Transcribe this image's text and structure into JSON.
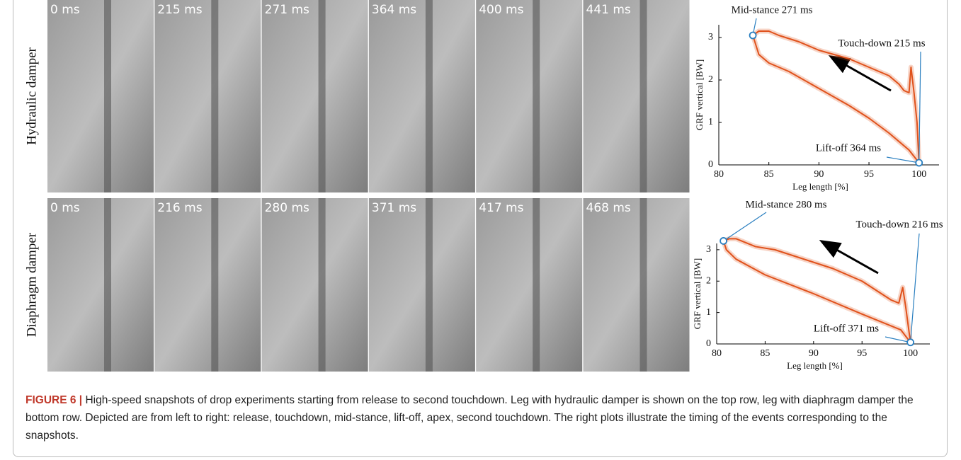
{
  "figure": {
    "rows": [
      {
        "label": "Hydraulic damper",
        "times": [
          "0 ms",
          "215 ms",
          "271 ms",
          "364 ms",
          "400 ms",
          "441 ms"
        ]
      },
      {
        "label": "Diaphragm damper",
        "times": [
          "0 ms",
          "216 ms",
          "280 ms",
          "371 ms",
          "417 ms",
          "468 ms"
        ]
      }
    ],
    "chart_data": [
      {
        "type": "line",
        "x_label": "Leg length [%]",
        "y_label": "GRF vertical [BW]",
        "xlim": [
          80,
          102
        ],
        "ylim": [
          0,
          3.3
        ],
        "xticks": [
          80,
          85,
          90,
          95,
          100
        ],
        "yticks": [
          0,
          1,
          2,
          3
        ],
        "series": [
          {
            "color": "#e0521c",
            "x": [
              100,
              99.8,
              99.5,
              99.2,
              99.0,
              98.5,
              98.0,
              97.0,
              95.0,
              93.0,
              90.0,
              88.0,
              86.0,
              85.0,
              84.0,
              83.4,
              84.0,
              85.0,
              87.0,
              90.0,
              93.0,
              95.0,
              97.0,
              99.0,
              100
            ],
            "values": [
              0.05,
              1.0,
              1.7,
              2.3,
              1.7,
              1.75,
              1.9,
              2.1,
              2.3,
              2.5,
              2.7,
              2.9,
              3.05,
              3.15,
              3.15,
              3.05,
              2.6,
              2.4,
              2.2,
              1.8,
              1.4,
              1.1,
              0.75,
              0.35,
              0.05
            ]
          }
        ],
        "annotations": [
          {
            "text": "Mid-stance 271 ms",
            "x": 83.4,
            "y": 3.05
          },
          {
            "text": "Touch-down 215 ms",
            "x": 100,
            "y": 0.05
          },
          {
            "text": "Lift-off 364 ms",
            "x": 100,
            "y": 0.05
          }
        ]
      },
      {
        "type": "line",
        "x_label": "Leg length [%]",
        "y_label": "GRF vertical [BW]",
        "xlim": [
          80,
          102
        ],
        "ylim": [
          0,
          3.2
        ],
        "xticks": [
          80,
          85,
          90,
          95,
          100
        ],
        "yticks": [
          0,
          1,
          2,
          3
        ],
        "series": [
          {
            "color": "#e0521c",
            "x": [
              100,
              99.5,
              99.2,
              98.8,
              98.0,
              97.0,
              95.0,
              92.0,
              90.0,
              88.0,
              86.0,
              84.0,
              82.0,
              81.3,
              80.7,
              81.0,
              82.0,
              85.0,
              90.0,
              95.0,
              99.0,
              100
            ],
            "values": [
              0.05,
              1.2,
              1.8,
              1.3,
              1.4,
              1.6,
              2.0,
              2.4,
              2.6,
              2.8,
              3.0,
              3.1,
              3.35,
              3.35,
              3.28,
              3.0,
              2.7,
              2.2,
              1.6,
              0.95,
              0.45,
              0.05
            ]
          }
        ],
        "annotations": [
          {
            "text": "Mid-stance 280 ms",
            "x": 80.7,
            "y": 3.28
          },
          {
            "text": "Touch-down 216 ms",
            "x": 100,
            "y": 0.05
          },
          {
            "text": "Lift-off 371 ms",
            "x": 100,
            "y": 0.05
          }
        ]
      }
    ],
    "caption": {
      "label": "FIGURE 6 |",
      "text": "High-speed snapshots of drop experiments starting from release to second touchdown. Leg with hydraulic damper is shown on the top row, leg with diaphragm damper the bottom row. Depicted are from left to right: release, touchdown, mid-stance, lift-off, apex, second touchdown. The right plots illustrate the timing of the events corresponding to the snapshots."
    }
  }
}
